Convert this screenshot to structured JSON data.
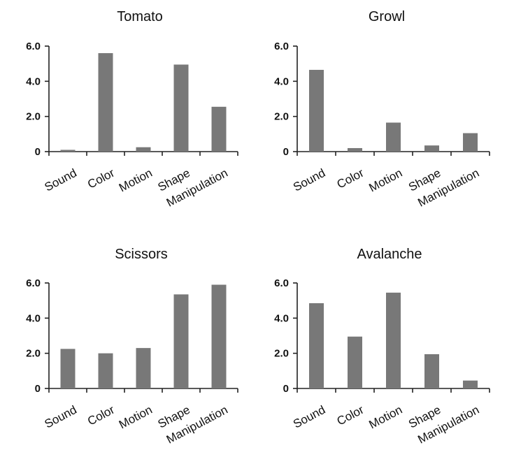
{
  "chart_data": [
    {
      "type": "bar",
      "title": "Tomato",
      "categories": [
        "Sound",
        "Color",
        "Motion",
        "Shape",
        "Manipulation"
      ],
      "values": [
        0.1,
        5.6,
        0.25,
        4.95,
        2.55
      ],
      "ylim": [
        0,
        6.0
      ],
      "yticks": [
        "0",
        "2.0",
        "4.0",
        "6.0"
      ],
      "xlabel": "",
      "ylabel": "",
      "color": "#787878"
    },
    {
      "type": "bar",
      "title": "Growl",
      "categories": [
        "Sound",
        "Color",
        "Motion",
        "Shape",
        "Manipulation"
      ],
      "values": [
        4.65,
        0.2,
        1.65,
        0.35,
        1.05
      ],
      "ylim": [
        0,
        6.0
      ],
      "yticks": [
        "0",
        "2.0",
        "4.0",
        "6.0"
      ],
      "xlabel": "",
      "ylabel": "",
      "color": "#787878"
    },
    {
      "type": "bar",
      "title": "Scissors",
      "categories": [
        "Sound",
        "Color",
        "Motion",
        "Shape",
        "Manipulation"
      ],
      "values": [
        2.25,
        2.0,
        2.3,
        5.35,
        5.9
      ],
      "ylim": [
        0,
        6.0
      ],
      "yticks": [
        "0",
        "2.0",
        "4.0",
        "6.0"
      ],
      "xlabel": "",
      "ylabel": "",
      "color": "#787878"
    },
    {
      "type": "bar",
      "title": "Avalanche",
      "categories": [
        "Sound",
        "Color",
        "Motion",
        "Shape",
        "Manipulation"
      ],
      "values": [
        4.85,
        2.95,
        5.45,
        1.95,
        0.45
      ],
      "ylim": [
        0,
        6.0
      ],
      "yticks": [
        "0",
        "2.0",
        "4.0",
        "6.0"
      ],
      "xlabel": "",
      "ylabel": "",
      "color": "#787878"
    }
  ]
}
